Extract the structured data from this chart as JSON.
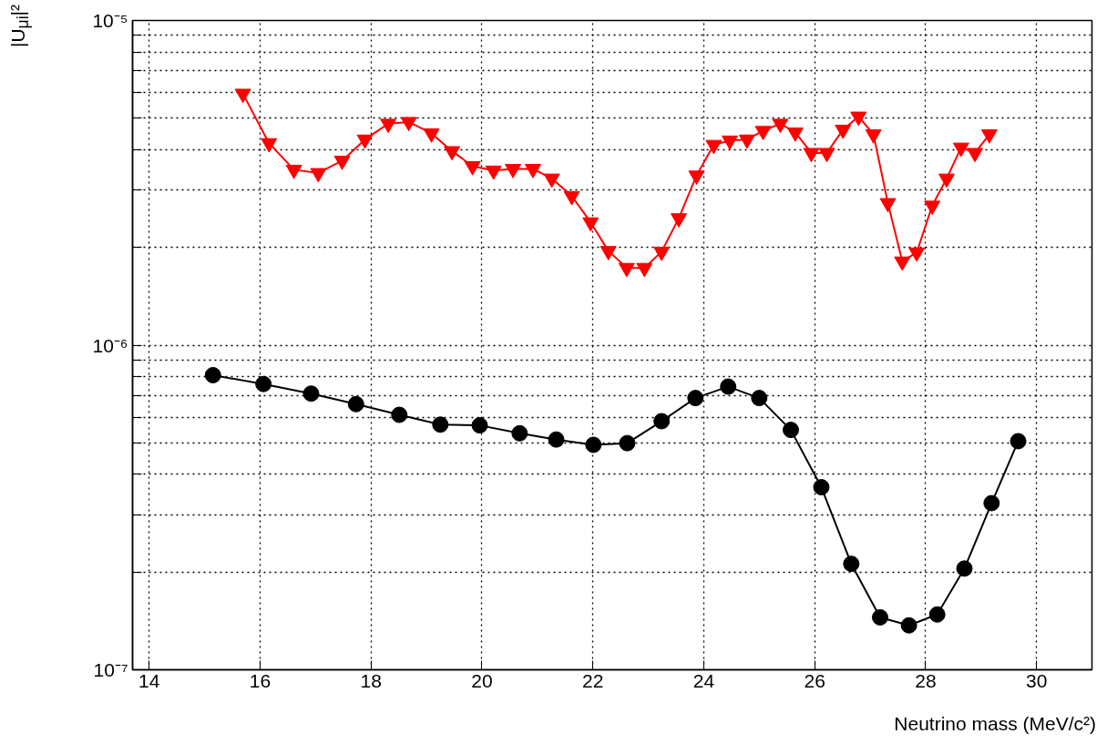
{
  "chart_data": {
    "type": "line",
    "xlabel": "Neutrino mass (MeV/c²)",
    "ylabel": "|U$_{μi}$|²",
    "log": true,
    "grid": true,
    "xlim": [
      13.7,
      31
    ],
    "xticks": [
      14,
      16,
      18,
      20,
      22,
      24,
      26,
      28,
      30
    ],
    "ylim": [
      1e-07,
      1e-05
    ],
    "yticks": [
      {
        "value": 1e-07,
        "label": "10⁻⁷"
      },
      {
        "value": 2e-07,
        "label": null
      },
      {
        "value": 3e-07,
        "label": null
      },
      {
        "value": 4e-07,
        "label": null
      },
      {
        "value": 5e-07,
        "label": null
      },
      {
        "value": 6e-07,
        "label": null
      },
      {
        "value": 7e-07,
        "label": null
      },
      {
        "value": 8e-07,
        "label": null
      },
      {
        "value": 9e-07,
        "label": null
      },
      {
        "value": 1e-06,
        "label": "10⁻⁶"
      },
      {
        "value": 2e-06,
        "label": null
      },
      {
        "value": 3e-06,
        "label": null
      },
      {
        "value": 4e-06,
        "label": null
      },
      {
        "value": 5e-06,
        "label": null
      },
      {
        "value": 6e-06,
        "label": null
      },
      {
        "value": 7e-06,
        "label": null
      },
      {
        "value": 8e-06,
        "label": null
      },
      {
        "value": 9e-06,
        "label": null
      },
      {
        "value": 1e-05,
        "label": "10⁻⁵"
      }
    ],
    "series": [
      {
        "color": "#ff0000",
        "marker": "triangle",
        "x": [
          15.69,
          16.16,
          16.61,
          17.05,
          17.48,
          17.89,
          18.31,
          18.68,
          19.09,
          19.46,
          19.83,
          20.21,
          20.56,
          20.92,
          21.26,
          21.62,
          21.96,
          22.28,
          22.61,
          22.93,
          23.24,
          23.55,
          23.87,
          24.18,
          24.47,
          24.78,
          25.07,
          25.38,
          25.65,
          25.94,
          26.22,
          26.51,
          26.79,
          27.06,
          27.32,
          27.58,
          27.84,
          28.12,
          28.38,
          28.64,
          28.89,
          29.15
        ],
        "values": [
          5.95e-06,
          4.19e-06,
          3.47e-06,
          3.39e-06,
          3.7e-06,
          4.3e-06,
          4.81e-06,
          4.87e-06,
          4.49e-06,
          3.96e-06,
          3.56e-06,
          3.45e-06,
          3.49e-06,
          3.49e-06,
          3.26e-06,
          2.88e-06,
          2.39e-06,
          1.95e-06,
          1.73e-06,
          1.73e-06,
          1.94e-06,
          2.46e-06,
          3.33e-06,
          4.14e-06,
          4.27e-06,
          4.3e-06,
          4.57e-06,
          4.81e-06,
          4.52e-06,
          3.91e-06,
          3.91e-06,
          4.61e-06,
          5.06e-06,
          4.46e-06,
          2.74e-06,
          1.81e-06,
          1.93e-06,
          2.69e-06,
          3.26e-06,
          4.06e-06,
          3.91e-06,
          4.46e-06
        ]
      },
      {
        "color": "#000000",
        "marker": "circle",
        "x": [
          15.15,
          16.06,
          16.92,
          17.73,
          18.51,
          19.25,
          19.96,
          20.68,
          21.34,
          22.01,
          22.62,
          23.24,
          23.85,
          24.44,
          25.0,
          25.57,
          26.12,
          26.66,
          27.18,
          27.7,
          28.21,
          28.7,
          29.19,
          29.67
        ],
        "values": [
          8.08e-07,
          7.59e-07,
          7.09e-07,
          6.58e-07,
          6.1e-07,
          5.69e-07,
          5.66e-07,
          5.35e-07,
          5.12e-07,
          4.93e-07,
          4.99e-07,
          5.83e-07,
          6.87e-07,
          7.45e-07,
          6.87e-07,
          5.48e-07,
          3.65e-07,
          2.12e-07,
          1.45e-07,
          1.37e-07,
          1.48e-07,
          2.05e-07,
          3.26e-07,
          5.06e-07
        ]
      }
    ]
  }
}
